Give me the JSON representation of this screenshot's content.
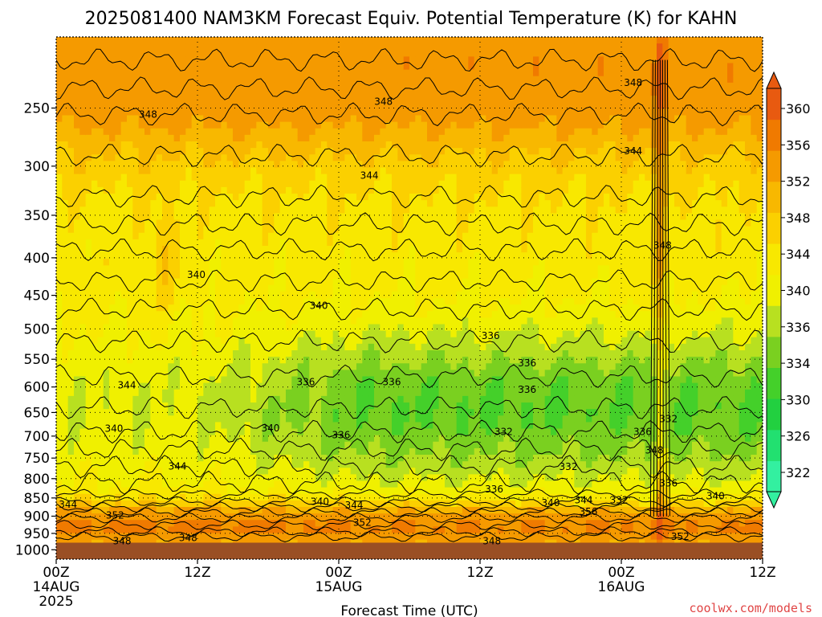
{
  "title": "2025081400 NAM3KM Forecast Equiv. Potential Temperature (K) for KAHN",
  "xlabel": "Forecast Time (UTC)",
  "credit": "coolwx.com/models",
  "colors": {
    "ground": "#9a4f24",
    "contour_line": "#000000",
    "colorbar": [
      "#33f0a0",
      "#22e070",
      "#22d040",
      "#44d02a",
      "#7ad020",
      "#b8e020",
      "#f0f000",
      "#f8e800",
      "#fbd000",
      "#f8b800",
      "#f59a00",
      "#f07a00",
      "#e85a10"
    ]
  },
  "chart_data": {
    "type": "heatmap",
    "title": "2025081400 NAM3KM Forecast Equiv. Potential Temperature (K) for KAHN",
    "xlabel": "Forecast Time (UTC)",
    "ylabel": "",
    "x_ticks": [
      {
        "label": "00Z",
        "sub": "14AUG",
        "sub2": "2025",
        "hour": 0
      },
      {
        "label": "12Z",
        "sub": "",
        "sub2": "",
        "hour": 12
      },
      {
        "label": "00Z",
        "sub": "15AUG",
        "sub2": "",
        "hour": 24
      },
      {
        "label": "12Z",
        "sub": "",
        "sub2": "",
        "hour": 36
      },
      {
        "label": "00Z",
        "sub": "16AUG",
        "sub2": "",
        "hour": 48
      },
      {
        "label": "12Z",
        "sub": "",
        "sub2": "",
        "hour": 60
      }
    ],
    "xlim_hours": [
      0,
      60
    ],
    "y_ticks": [
      250,
      300,
      350,
      400,
      450,
      500,
      550,
      600,
      650,
      700,
      750,
      800,
      850,
      900,
      950,
      1000
    ],
    "ylim_hPa": [
      200,
      1030
    ],
    "y_scale": "log",
    "colorbar_levels": [
      322,
      326,
      330,
      334,
      336,
      340,
      344,
      348,
      352,
      356,
      360
    ],
    "colorbar_tick_labels": [
      "322",
      "326",
      "330",
      "334",
      "336",
      "340",
      "344",
      "348",
      "352",
      "356",
      "360"
    ],
    "contour_labels": [
      {
        "text": "348",
        "hour": 7.8,
        "p": 255
      },
      {
        "text": "348",
        "hour": 27.8,
        "p": 245
      },
      {
        "text": "348",
        "hour": 49.0,
        "p": 231
      },
      {
        "text": "344",
        "hour": 26.6,
        "p": 309
      },
      {
        "text": "344",
        "hour": 49.0,
        "p": 286
      },
      {
        "text": "348",
        "hour": 51.5,
        "p": 385
      },
      {
        "text": "340",
        "hour": 11.9,
        "p": 422
      },
      {
        "text": "340",
        "hour": 22.3,
        "p": 465
      },
      {
        "text": "336",
        "hour": 36.9,
        "p": 511
      },
      {
        "text": "336",
        "hour": 40.0,
        "p": 557
      },
      {
        "text": "336",
        "hour": 40.0,
        "p": 605
      },
      {
        "text": "336",
        "hour": 21.2,
        "p": 591
      },
      {
        "text": "336",
        "hour": 28.5,
        "p": 591
      },
      {
        "text": "344",
        "hour": 6.0,
        "p": 597
      },
      {
        "text": "340",
        "hour": 4.9,
        "p": 684
      },
      {
        "text": "340",
        "hour": 18.2,
        "p": 683
      },
      {
        "text": "336",
        "hour": 24.2,
        "p": 698
      },
      {
        "text": "332",
        "hour": 38.0,
        "p": 691
      },
      {
        "text": "332",
        "hour": 52.0,
        "p": 663
      },
      {
        "text": "336",
        "hour": 49.8,
        "p": 691
      },
      {
        "text": "348",
        "hour": 50.8,
        "p": 732
      },
      {
        "text": "344",
        "hour": 10.3,
        "p": 770
      },
      {
        "text": "332",
        "hour": 43.5,
        "p": 771
      },
      {
        "text": "336",
        "hour": 37.2,
        "p": 827
      },
      {
        "text": "336",
        "hour": 52.0,
        "p": 812
      },
      {
        "text": "340",
        "hour": 22.4,
        "p": 860
      },
      {
        "text": "344",
        "hour": 25.3,
        "p": 870
      },
      {
        "text": "340",
        "hour": 42.0,
        "p": 863
      },
      {
        "text": "344",
        "hour": 44.8,
        "p": 856
      },
      {
        "text": "332",
        "hour": 47.8,
        "p": 856
      },
      {
        "text": "340",
        "hour": 56.0,
        "p": 845
      },
      {
        "text": "356",
        "hour": 45.2,
        "p": 888
      },
      {
        "text": "344",
        "hour": 1.0,
        "p": 868
      },
      {
        "text": "352",
        "hour": 5.0,
        "p": 898
      },
      {
        "text": "352",
        "hour": 26.0,
        "p": 918
      },
      {
        "text": "348",
        "hour": 5.6,
        "p": 973
      },
      {
        "text": "348",
        "hour": 11.2,
        "p": 963
      },
      {
        "text": "348",
        "hour": 37.0,
        "p": 973
      },
      {
        "text": "352",
        "hour": 53.0,
        "p": 960
      }
    ]
  }
}
